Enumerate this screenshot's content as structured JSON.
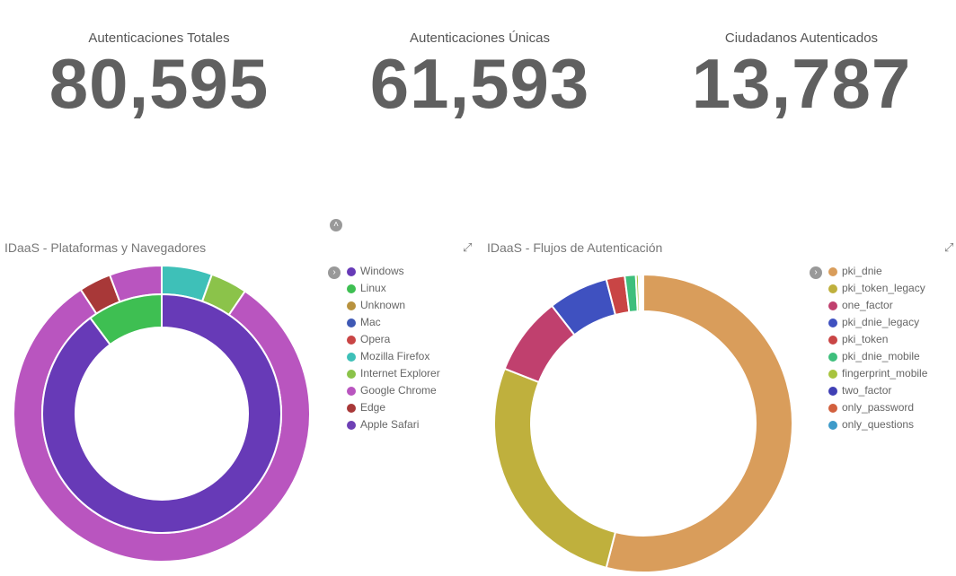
{
  "metrics": [
    {
      "label": "Autenticaciones Totales",
      "value": "80,595"
    },
    {
      "label": "Autenticaciones Únicas",
      "value": "61,593"
    },
    {
      "label": "Ciudadanos Autenticados",
      "value": "13,787"
    }
  ],
  "icons": {
    "collapse": "chevron-up-icon",
    "expand": "expand-icon",
    "legend_toggle": "chevron-right-icon"
  },
  "chart_data": [
    {
      "type": "pie",
      "title": "IDaaS - Plataformas y Navegadores",
      "legend_placement": "right",
      "legend": [
        {
          "name": "Windows",
          "color": "#673ab7"
        },
        {
          "name": "Linux",
          "color": "#3ebf52"
        },
        {
          "name": "Unknown",
          "color": "#b8923e"
        },
        {
          "name": "Mac",
          "color": "#3f59b5"
        },
        {
          "name": "Opera",
          "color": "#c94545"
        },
        {
          "name": "Mozilla Firefox",
          "color": "#3ec0b8"
        },
        {
          "name": "Internet Explorer",
          "color": "#8bc34a"
        },
        {
          "name": "Google Chrome",
          "color": "#b955bf"
        },
        {
          "name": "Edge",
          "color": "#a83838"
        },
        {
          "name": "Apple Safari",
          "color": "#6e40b5"
        }
      ],
      "inner_ring": {
        "level": "platform",
        "slices": [
          {
            "name": "Windows",
            "value": 0.898,
            "color": "#673ab7"
          },
          {
            "name": "Linux",
            "value": 0.102,
            "color": "#3ebf52"
          }
        ]
      },
      "outer_ring": {
        "level": "browser",
        "slices": [
          {
            "name": "Mozilla Firefox",
            "value": 0.055,
            "color": "#3ec0b8"
          },
          {
            "name": "Internet Explorer",
            "value": 0.04,
            "color": "#8bc34a"
          },
          {
            "name": "Google Chrome",
            "value": 0.813,
            "color": "#b955bf"
          },
          {
            "name": "Edge",
            "value": 0.035,
            "color": "#a83838"
          },
          {
            "name": "Google Chrome",
            "value": 0.057,
            "color": "#b955bf"
          }
        ]
      }
    },
    {
      "type": "pie",
      "title": "IDaaS - Flujos de Autenticación",
      "legend_placement": "right",
      "legend": [
        {
          "name": "pki_dnie",
          "color": "#d99d5b"
        },
        {
          "name": "pki_token_legacy",
          "color": "#bfb03d"
        },
        {
          "name": "one_factor",
          "color": "#c0406e"
        },
        {
          "name": "pki_dnie_legacy",
          "color": "#3f51c0"
        },
        {
          "name": "pki_token",
          "color": "#c94545"
        },
        {
          "name": "pki_dnie_mobile",
          "color": "#3ebf7c"
        },
        {
          "name": "fingerprint_mobile",
          "color": "#a8c43e"
        },
        {
          "name": "two_factor",
          "color": "#4040b5"
        },
        {
          "name": "only_password",
          "color": "#d2603e"
        },
        {
          "name": "only_questions",
          "color": "#3e9bc9"
        }
      ],
      "slices": [
        {
          "name": "pki_dnie",
          "value": 0.54,
          "color": "#d99d5b"
        },
        {
          "name": "pki_token_legacy",
          "value": 0.27,
          "color": "#bfb03d"
        },
        {
          "name": "one_factor",
          "value": 0.085,
          "color": "#c0406e"
        },
        {
          "name": "pki_dnie_legacy",
          "value": 0.065,
          "color": "#3f51c0"
        },
        {
          "name": "pki_token",
          "value": 0.02,
          "color": "#c94545"
        },
        {
          "name": "pki_dnie_mobile",
          "value": 0.012,
          "color": "#3ebf7c"
        },
        {
          "name": "fingerprint_mobile",
          "value": 0.003,
          "color": "#a8c43e"
        },
        {
          "name": "two_factor",
          "value": 0.002,
          "color": "#4040b5"
        },
        {
          "name": "only_password",
          "value": 0.002,
          "color": "#d2603e"
        },
        {
          "name": "only_questions",
          "value": 0.001,
          "color": "#3e9bc9"
        }
      ]
    }
  ]
}
